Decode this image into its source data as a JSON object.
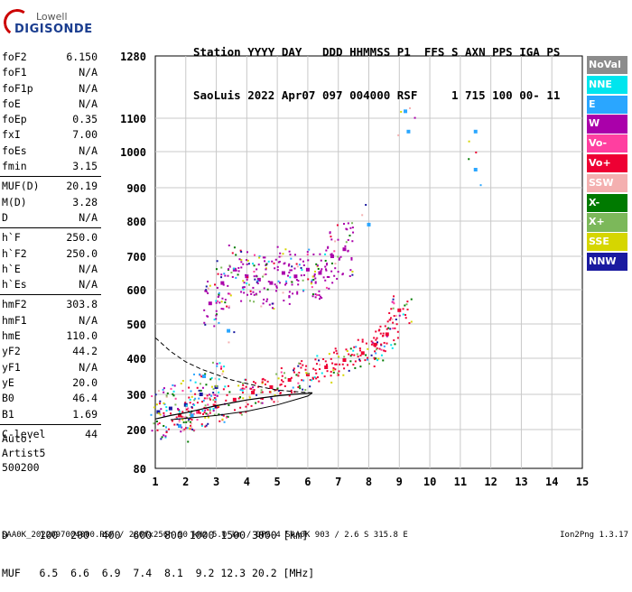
{
  "logo": {
    "line1": "Lowell",
    "line2": "DIGISONDE"
  },
  "header": {
    "line1": "Station YYYY DAY   DDD HHMMSS P1  FFS S AXN PPS IGA PS",
    "line2": "SaoLuis 2022 Apr07 097 004000 RSF     1 715 100 00- 11"
  },
  "params": {
    "g1": [
      {
        "label": "foF2",
        "value": "6.150"
      },
      {
        "label": "foF1",
        "value": "N/A"
      },
      {
        "label": "foF1p",
        "value": "N/A"
      },
      {
        "label": "foE",
        "value": "N/A"
      },
      {
        "label": "foEp",
        "value": "0.35"
      },
      {
        "label": "fxI",
        "value": "7.00"
      },
      {
        "label": "foEs",
        "value": "N/A"
      },
      {
        "label": "fmin",
        "value": "3.15"
      }
    ],
    "g2": [
      {
        "label": "MUF(D)",
        "value": "20.19"
      },
      {
        "label": "M(D)",
        "value": "3.28"
      },
      {
        "label": "D",
        "value": "N/A"
      }
    ],
    "g3": [
      {
        "label": "h`F",
        "value": "250.0"
      },
      {
        "label": "h`F2",
        "value": "250.0"
      },
      {
        "label": "h`E",
        "value": "N/A"
      },
      {
        "label": "h`Es",
        "value": "N/A"
      }
    ],
    "g4": [
      {
        "label": "hmF2",
        "value": "303.8"
      },
      {
        "label": "hmF1",
        "value": "N/A"
      },
      {
        "label": "hmE",
        "value": "110.0"
      },
      {
        "label": "yF2",
        "value": "44.2"
      },
      {
        "label": "yF1",
        "value": "N/A"
      },
      {
        "label": "yE",
        "value": "20.0"
      },
      {
        "label": "B0",
        "value": "46.4"
      },
      {
        "label": "B1",
        "value": "1.69"
      }
    ],
    "g5": [
      {
        "label": "C-level",
        "value": "44"
      }
    ]
  },
  "auto": {
    "line1": "Auto:",
    "line2": "Artist5",
    "line3": "500200"
  },
  "legend": [
    {
      "label": "NoVal",
      "color": "#8c8c8c"
    },
    {
      "label": "NNE",
      "color": "#00e5ee"
    },
    {
      "label": "E",
      "color": "#2aa6ff"
    },
    {
      "label": "W",
      "color": "#aa00aa"
    },
    {
      "label": "Vo-",
      "color": "#ff3fa0"
    },
    {
      "label": "Vo+",
      "color": "#ee0033"
    },
    {
      "label": "SSW",
      "color": "#f4b0b0"
    },
    {
      "label": "X-",
      "color": "#007a00"
    },
    {
      "label": "X+",
      "color": "#7cb85a"
    },
    {
      "label": "SSE",
      "color": "#d6d600"
    },
    {
      "label": "NNW",
      "color": "#1a1aa0"
    }
  ],
  "footer": {
    "d_row": "D     100  200  400  600  800 1000 1500 3000 [km]",
    "muf_row": "MUF   6.5  6.6  6.9  7.4  8.1  9.2 12.3 20.2 [MHz]",
    "file": "SAA0K_2022097004000.RSF / 280fx256h 50 kHz 5.0 km / DPS-4 SAA0K 903 / 2.6 S 315.8 E",
    "version": "Ion2Png 1.3.17"
  },
  "chart_data": {
    "type": "scatter",
    "x_range": [
      1,
      15
    ],
    "y_range": [
      80,
      1280
    ],
    "x_ticks": [
      "1",
      "2",
      "3",
      "4",
      "5",
      "6",
      "7",
      "8",
      "9",
      "10",
      "11",
      "12",
      "13",
      "14",
      "15"
    ],
    "y_ticks": [
      "80",
      "200",
      "300",
      "400",
      "500",
      "600",
      "700",
      "800",
      "900",
      "1000",
      "1100",
      "1280"
    ],
    "y_scale": "nonlinear (approx. 1/frequency-like spacing)",
    "grid": true,
    "traces": [
      {
        "name": "F2 trace (Vo+/Vo-)",
        "color": "#ee0033",
        "x": [
          1.8,
          2.4,
          3.0,
          3.6,
          4.2,
          4.8,
          5.4,
          6.0,
          6.6,
          7.2,
          7.8,
          8.2,
          8.6,
          9.0
        ],
        "y": [
          240,
          250,
          265,
          285,
          305,
          320,
          340,
          355,
          375,
          395,
          415,
          440,
          470,
          540
        ]
      },
      {
        "name": "2F trace",
        "color": "#aa00aa",
        "x": [
          2.8,
          3.2,
          3.6,
          4.0,
          4.4,
          4.8,
          5.2,
          5.6,
          6.0,
          6.4,
          6.8,
          7.2
        ],
        "y": [
          560,
          620,
          660,
          640,
          630,
          620,
          650,
          640,
          660,
          650,
          700,
          720
        ]
      },
      {
        "name": "Low range (NNW/W)",
        "color": "#1a1aa0",
        "x": [
          1.1,
          1.5,
          2.0,
          2.5,
          3.0
        ],
        "y": [
          250,
          260,
          270,
          300,
          320
        ]
      },
      {
        "name": "Scattered echoes",
        "color": "#2aa6ff",
        "x": [
          1.8,
          2.2,
          2.6,
          3.4,
          11.5,
          11.5,
          9.2,
          9.3,
          8.0
        ],
        "y": [
          210,
          240,
          350,
          480,
          950,
          1060,
          1120,
          1060,
          790
        ]
      }
    ],
    "profile": {
      "name": "Electron density profile",
      "x": [
        1.0,
        1.5,
        2.0,
        2.5,
        3.0,
        3.5,
        4.0,
        4.5,
        5.0,
        5.5,
        6.0,
        6.15
      ],
      "y": [
        230,
        240,
        248,
        258,
        268,
        276,
        284,
        290,
        296,
        300,
        303,
        304
      ]
    },
    "profile_upper": {
      "x": [
        1.0,
        1.5,
        2.0,
        2.5,
        3.0,
        3.5,
        4.0,
        4.5,
        5.0,
        5.5,
        6.0,
        6.15
      ],
      "y": [
        460,
        420,
        390,
        370,
        355,
        340,
        330,
        320,
        312,
        308,
        305,
        304
      ]
    },
    "profile_lower": {
      "x": [
        1.5,
        2.0,
        3.0,
        4.0,
        5.0,
        6.0,
        6.15
      ],
      "y": [
        228,
        232,
        240,
        252,
        270,
        295,
        304
      ]
    }
  }
}
